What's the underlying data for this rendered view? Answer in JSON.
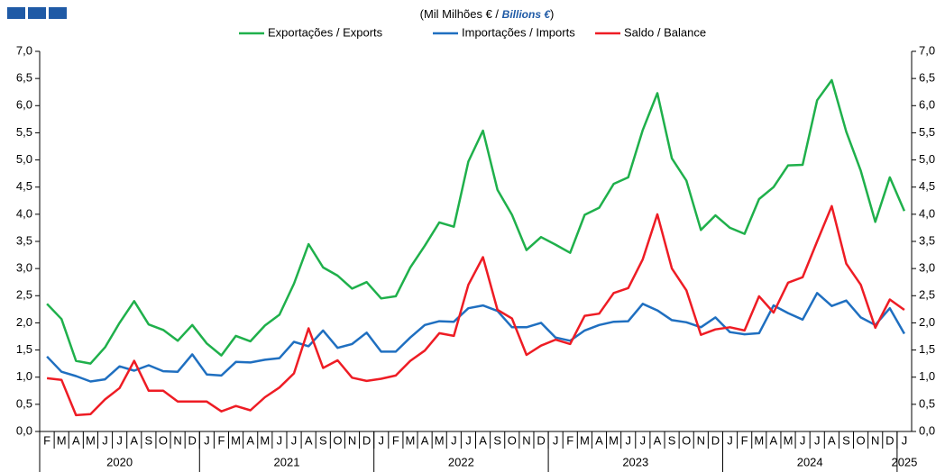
{
  "chart_data": {
    "type": "line",
    "subtitle": [
      "(Mil Milhões € /",
      "Billions €",
      ")"
    ],
    "categories": [
      "F",
      "M",
      "A",
      "M",
      "J",
      "J",
      "A",
      "S",
      "O",
      "N",
      "D",
      "J",
      "F",
      "M",
      "A",
      "M",
      "J",
      "J",
      "A",
      "S",
      "O",
      "N",
      "D",
      "J",
      "F",
      "M",
      "A",
      "M",
      "J",
      "J",
      "A",
      "S",
      "O",
      "N",
      "D",
      "J",
      "F",
      "M",
      "A",
      "M",
      "J",
      "J",
      "A",
      "S",
      "O",
      "N",
      "D",
      "J",
      "F",
      "M",
      "A",
      "M",
      "J",
      "J",
      "A",
      "S",
      "O",
      "N",
      "D",
      "J"
    ],
    "years": [
      "2020",
      "2021",
      "2022",
      "2023",
      "2024",
      "2025"
    ],
    "series": [
      {
        "name": "Exportações / Exports",
        "color": "#1fb04b",
        "values": [
          2.35,
          2.07,
          1.3,
          1.25,
          1.55,
          2.0,
          2.4,
          1.97,
          1.87,
          1.67,
          1.96,
          1.62,
          1.4,
          1.76,
          1.66,
          1.95,
          2.15,
          2.72,
          3.45,
          3.02,
          2.87,
          2.63,
          2.75,
          2.45,
          2.49,
          3.02,
          3.42,
          3.85,
          3.77,
          4.97,
          5.54,
          4.45,
          3.99,
          3.34,
          3.58,
          3.44,
          3.29,
          3.99,
          4.12,
          4.56,
          4.68,
          5.55,
          6.23,
          5.03,
          4.62,
          3.71,
          3.98,
          3.75,
          3.64,
          4.28,
          4.5,
          4.9,
          4.91,
          6.1,
          6.47,
          5.52,
          4.8,
          3.86,
          4.68,
          4.06
        ]
      },
      {
        "name": "Importações / Imports",
        "color": "#1f6fc0",
        "values": [
          1.38,
          1.1,
          1.02,
          0.92,
          0.96,
          1.2,
          1.12,
          1.22,
          1.11,
          1.1,
          1.42,
          1.05,
          1.03,
          1.28,
          1.27,
          1.32,
          1.35,
          1.65,
          1.57,
          1.86,
          1.54,
          1.61,
          1.82,
          1.47,
          1.47,
          1.73,
          1.96,
          2.03,
          2.02,
          2.27,
          2.32,
          2.22,
          1.92,
          1.92,
          2.0,
          1.73,
          1.67,
          1.86,
          1.96,
          2.02,
          2.03,
          2.35,
          2.23,
          2.05,
          2.01,
          1.92,
          2.1,
          1.83,
          1.79,
          1.81,
          2.32,
          2.18,
          2.06,
          2.55,
          2.31,
          2.41,
          2.1,
          1.96,
          2.27,
          1.8
        ]
      },
      {
        "name": "Saldo / Balance",
        "color": "#ee1c24",
        "values": [
          0.98,
          0.95,
          0.3,
          0.32,
          0.59,
          0.8,
          1.3,
          0.75,
          0.75,
          0.55,
          0.55,
          0.55,
          0.37,
          0.47,
          0.39,
          0.63,
          0.81,
          1.07,
          1.9,
          1.17,
          1.31,
          0.99,
          0.93,
          0.97,
          1.03,
          1.3,
          1.49,
          1.81,
          1.76,
          2.7,
          3.21,
          2.24,
          2.08,
          1.41,
          1.58,
          1.69,
          1.61,
          2.13,
          2.17,
          2.55,
          2.64,
          3.17,
          4.0,
          3.0,
          2.6,
          1.78,
          1.88,
          1.92,
          1.86,
          2.49,
          2.19,
          2.74,
          2.84,
          3.5,
          4.15,
          3.09,
          2.7,
          1.91,
          2.43,
          2.24
        ]
      }
    ],
    "ylim": [
      0,
      7
    ],
    "yticks": [
      {
        "value": 0,
        "label": "0,0"
      },
      {
        "value": 0.5,
        "label": "0,5"
      },
      {
        "value": 1,
        "label": "1,0"
      },
      {
        "value": 1.5,
        "label": "1,5"
      },
      {
        "value": 2,
        "label": "2,0"
      },
      {
        "value": 2.5,
        "label": "2,5"
      },
      {
        "value": 3,
        "label": "3,0"
      },
      {
        "value": 3.5,
        "label": "3,5"
      },
      {
        "value": 4,
        "label": "4,0"
      },
      {
        "value": 4.5,
        "label": "4,5"
      },
      {
        "value": 5,
        "label": "5,0"
      },
      {
        "value": 5.5,
        "label": "5,5"
      },
      {
        "value": 6,
        "label": "6,0"
      },
      {
        "value": 6.5,
        "label": "6,5"
      },
      {
        "value": 7,
        "label": "7,0"
      }
    ],
    "y2lim": [
      0,
      7
    ],
    "y2ticks": [
      {
        "value": 0,
        "label": "0,0"
      },
      {
        "value": 0.5,
        "label": "0,5"
      },
      {
        "value": 1,
        "label": "1,0"
      },
      {
        "value": 1.5,
        "label": "1,5"
      },
      {
        "value": 2,
        "label": "2,0"
      },
      {
        "value": 2.5,
        "label": "2,5"
      },
      {
        "value": 3,
        "label": "3,0"
      },
      {
        "value": 3.5,
        "label": "3,5"
      },
      {
        "value": 4,
        "label": "4,0"
      },
      {
        "value": 4.5,
        "label": "4,5"
      },
      {
        "value": 5,
        "label": "5,0"
      },
      {
        "value": 5.5,
        "label": "5,5"
      },
      {
        "value": 6,
        "label": "6,0"
      },
      {
        "value": 6.5,
        "label": "6,5"
      },
      {
        "value": 7,
        "label": "7,0"
      }
    ],
    "grid": false,
    "legend": "top"
  }
}
